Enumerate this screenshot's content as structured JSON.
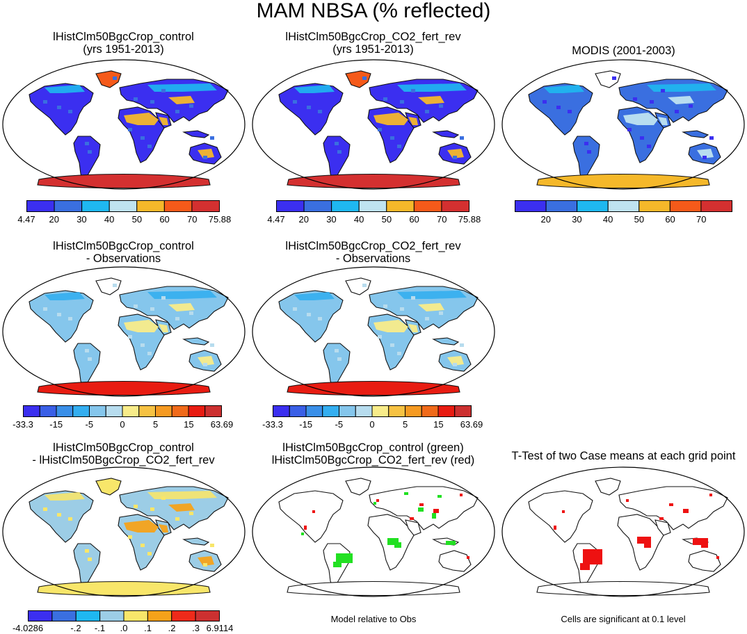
{
  "figure": {
    "title": "MAM NBSA (% reflected)"
  },
  "panels": [
    {
      "id": "p1",
      "title_lines": [
        "lHistClm50BgcCrop_control",
        "(yrs 1951-2013)"
      ]
    },
    {
      "id": "p2",
      "title_lines": [
        "lHistClm50BgcCrop_CO2_fert_rev",
        "(yrs 1951-2013)"
      ]
    },
    {
      "id": "p3",
      "title_lines": [
        "MODIS (2001-2003)"
      ]
    },
    {
      "id": "p4",
      "title_lines": [
        "lHistClm50BgcCrop_control",
        "- Observations"
      ]
    },
    {
      "id": "p5",
      "title_lines": [
        "lHistClm50BgcCrop_CO2_fert_rev",
        "- Observations"
      ]
    },
    {
      "id": "p6",
      "title_lines": [
        "lHistClm50BgcCrop_control",
        "- lHistClm50BgcCrop_CO2_fert_rev"
      ]
    },
    {
      "id": "p7",
      "title_lines": [
        "lHistClm50BgcCrop_control (green)",
        "lHistClm50BgcCrop_CO2_fert_rev (red)"
      ]
    },
    {
      "id": "p8",
      "title_lines": [
        "T-Test of two Case means at each grid point"
      ]
    }
  ],
  "colorbars": {
    "albedo": {
      "colors": [
        "#3b2ff0",
        "#3a6fe0",
        "#1fb8f0",
        "#bfe3f0",
        "#f5b82a",
        "#f55a1a",
        "#d43030"
      ],
      "labels": [
        "4.47",
        "20",
        "30",
        "40",
        "50",
        "60",
        "70",
        "75.88"
      ]
    },
    "modis": {
      "colors": [
        "#3b2ff0",
        "#3a6fe0",
        "#1fb8f0",
        "#bfe3f0",
        "#f5b82a",
        "#f55a1a",
        "#d43030"
      ],
      "labels": [
        "",
        "20",
        "30",
        "40",
        "50",
        "60",
        "70",
        ""
      ]
    },
    "bias": {
      "colors": [
        "#3b2ff0",
        "#3a5fe6",
        "#3a8fe8",
        "#34aef0",
        "#85c6ec",
        "#b7dcee",
        "#f8ec8a",
        "#f6c243",
        "#f59a22",
        "#f06a1a",
        "#e81c12",
        "#cc3030"
      ],
      "labels": [
        "-33.3",
        "",
        "-15",
        "",
        "-5",
        "",
        "0",
        "",
        "5",
        "",
        "15",
        "",
        "63.69"
      ]
    },
    "diff": {
      "colors": [
        "#3b2ff0",
        "#3a6fe0",
        "#1fb8f0",
        "#9ccde6",
        "#f8e66a",
        "#f5a21a",
        "#ee2a1a",
        "#cc3030"
      ],
      "labels": [
        "-4.0286",
        "",
        "-.2",
        "-.1",
        ".0",
        ".1",
        ".2",
        ".3",
        "6.9114"
      ]
    }
  },
  "notes": {
    "model_relative": "Model relative to Obs",
    "significance": "Cells are significant at 0.1 level"
  },
  "map_fills": {
    "albedo": {
      "ocean": "#ffffff",
      "land": "#3b2ff0",
      "accent": "#3a6fe0",
      "desert": "#f5b82a",
      "antarctica": "#d43030",
      "greenland": "#f55a1a",
      "north": "#1fb8f0"
    },
    "modis": {
      "ocean": "#ffffff",
      "land": "#3a6fe0",
      "accent": "#3b2ff0",
      "desert": "#bfe3f0",
      "antarctica": "#f5b82a",
      "greenland": "#ffffff",
      "north": "#1fb8f0"
    },
    "bias": {
      "ocean": "#ffffff",
      "land": "#85c6ec",
      "accent": "#b7dcee",
      "desert": "#f8ec8a",
      "antarctica": "#e81c12",
      "greenland": "#ffffff",
      "north": "#34aef0"
    },
    "diff": {
      "ocean": "#ffffff",
      "land": "#9ccde6",
      "accent": "#f8e66a",
      "desert": "#f5a21a",
      "antarctica": "#f8e66a",
      "greenland": "#f8e66a",
      "north": "#f8e66a"
    },
    "sig_green": {
      "ocean": "#ffffff",
      "land": "#ffffff",
      "mark": "#22e022",
      "mark2": "#ee1111"
    },
    "sig_red": {
      "ocean": "#ffffff",
      "land": "#ffffff",
      "mark": "#ee1111"
    }
  }
}
